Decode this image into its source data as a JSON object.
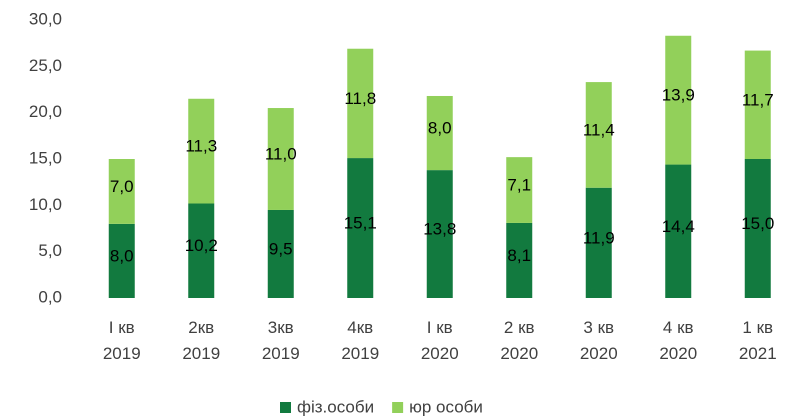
{
  "chart_data": {
    "type": "stacked_bar",
    "categories": [
      "I кв 2019",
      "2кв 2019",
      "3кв 2019",
      "4кв 2019",
      "I кв 2020",
      "2 кв 2020",
      "3 кв 2020",
      "4 кв 2020",
      "1 кв 2021"
    ],
    "series": [
      {
        "name": "фіз.особи",
        "color": "#127a3f",
        "values": [
          8.0,
          10.2,
          9.5,
          15.1,
          13.8,
          8.1,
          11.9,
          14.4,
          15.0
        ],
        "value_labels": [
          "8,0",
          "10,2",
          "9,5",
          "15,1",
          "13,8",
          "8,1",
          "11,9",
          "14,4",
          "15,0"
        ]
      },
      {
        "name": "юр особи",
        "color": "#92d05a",
        "values": [
          7.0,
          11.3,
          11.0,
          11.8,
          8.0,
          7.1,
          11.4,
          13.9,
          11.7
        ],
        "value_labels": [
          "7,0",
          "11,3",
          "11,0",
          "11,8",
          "8,0",
          "7,1",
          "11,4",
          "13,9",
          "11,7"
        ]
      }
    ],
    "ylim": [
      0,
      30
    ],
    "yticks": [
      {
        "value": 0,
        "label": "0,0"
      },
      {
        "value": 5,
        "label": "5,0"
      },
      {
        "value": 10,
        "label": "10,0"
      },
      {
        "value": 15,
        "label": "15,0"
      },
      {
        "value": 20,
        "label": "20,0"
      },
      {
        "value": 25,
        "label": "25,0"
      },
      {
        "value": 30,
        "label": "30,0"
      }
    ],
    "grid": false,
    "legend": "bottom"
  }
}
